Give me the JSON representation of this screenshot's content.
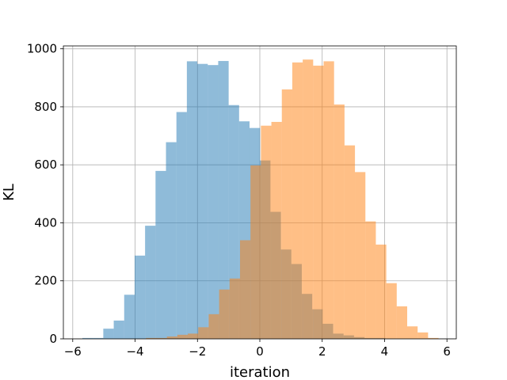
{
  "chart_data": {
    "type": "bar",
    "subtype": "overlaid-histogram",
    "title": "",
    "xlabel": "iteration",
    "ylabel": "KL",
    "xlim": [
      -6.3,
      6.3
    ],
    "ylim": [
      0,
      1010
    ],
    "xticks": [
      -6,
      -4,
      -2,
      0,
      2,
      4,
      6
    ],
    "yticks": [
      0,
      200,
      400,
      600,
      800,
      1000
    ],
    "grid": true,
    "legend": "none",
    "alpha": 0.5,
    "series": [
      {
        "color": "#1f77b4",
        "bin_edges": [
          -5.69,
          -5.355,
          -5.02,
          -4.685,
          -4.35,
          -4.015,
          -3.68,
          -3.345,
          -3.01,
          -2.675,
          -2.34,
          -2.005,
          -1.67,
          -1.335,
          -1.0,
          -0.665,
          -0.33,
          0.005,
          0.34,
          0.675,
          1.01,
          1.345,
          1.68,
          2.015,
          2.35,
          2.685,
          3.02,
          3.355,
          3.69,
          4.025
        ],
        "counts": [
          3,
          3,
          35,
          63,
          152,
          287,
          390,
          579,
          678,
          782,
          957,
          948,
          944,
          958,
          806,
          750,
          727,
          615,
          438,
          308,
          258,
          155,
          102,
          52,
          18,
          12,
          6,
          3,
          3
        ]
      },
      {
        "color": "#ff7f0e",
        "bin_edges": [
          -3.65,
          -3.315,
          -2.98,
          -2.645,
          -2.31,
          -1.975,
          -1.64,
          -1.305,
          -0.97,
          -0.635,
          -0.3,
          0.035,
          0.37,
          0.705,
          1.04,
          1.375,
          1.71,
          2.045,
          2.38,
          2.715,
          3.05,
          3.385,
          3.72,
          4.055,
          4.39,
          4.725,
          5.06,
          5.395,
          5.73
        ],
        "counts": [
          3,
          3,
          8,
          14,
          18,
          40,
          85,
          170,
          208,
          340,
          598,
          735,
          748,
          860,
          953,
          963,
          942,
          957,
          808,
          667,
          575,
          405,
          325,
          192,
          112,
          43,
          22,
          3
        ]
      }
    ]
  }
}
